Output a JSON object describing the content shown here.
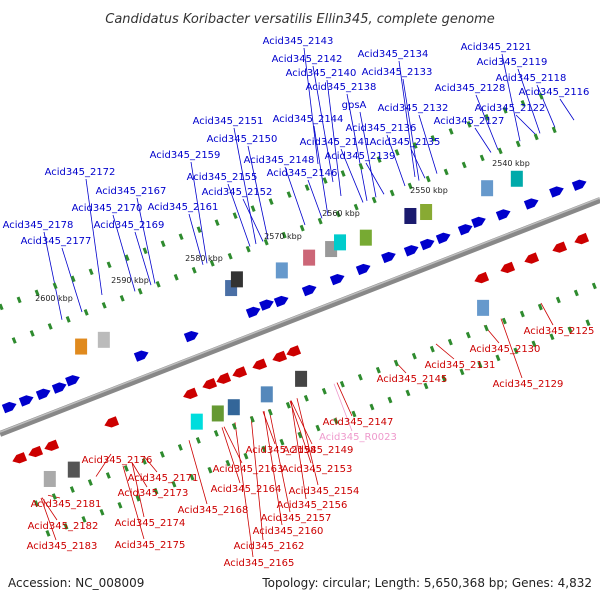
{
  "title": "Candidatus Koribacter versatilis Ellin345, complete genome",
  "footer": {
    "accession": "Accession: NC_008009",
    "summary": "Topology: circular; Length: 5,650,368 bp; Genes: 4,832"
  },
  "colors": {
    "top_strand": "#0000cc",
    "bottom_strand": "#cc0000",
    "rna": "#ee99cc",
    "backbone": "#888888"
  },
  "ticks": [
    "2540 kbp",
    "2550 kbp",
    "2560 kbp",
    "2570 kbp",
    "2580 kbp",
    "2590 kbp",
    "2600 kbp"
  ],
  "top_labels": [
    "Acid345_2143",
    "Acid345_2134",
    "Acid345_2121",
    "Acid345_2142",
    "Acid345_2119",
    "Acid345_2140",
    "Acid345_2133",
    "Acid345_2118",
    "Acid345_2138",
    "Acid345_2128",
    "Acid345_2116",
    "gpsA",
    "Acid345_2132",
    "Acid345_2122",
    "Acid345_2151",
    "Acid345_2144",
    "Acid345_2127",
    "Acid345_2136",
    "Acid345_2150",
    "Acid345_2141",
    "Acid345_2135",
    "Acid345_2159",
    "Acid345_2139",
    "Acid345_2148",
    "Acid345_2155",
    "Acid345_2146",
    "Acid345_2172",
    "Acid345_2167",
    "Acid345_2152",
    "Acid345_2170",
    "Acid345_2161",
    "Acid345_2169",
    "Acid345_2178",
    "Acid345_2177"
  ],
  "bottom_labels": [
    "Acid345_2125",
    "Acid345_2130",
    "Acid345_2131",
    "Acid345_2129",
    "Acid345_2145",
    "Acid345_2147",
    "Acid345_R0023",
    "Acid345_2149",
    "Acid345_2158",
    "Acid345_2176",
    "Acid345_2163",
    "Acid345_2153",
    "Acid345_2171",
    "Acid345_2173",
    "Acid345_2164",
    "Acid345_2154",
    "Acid345_2181",
    "Acid345_2156",
    "Acid345_2168",
    "Acid345_2157",
    "Acid345_2174",
    "Acid345_2182",
    "Acid345_2160",
    "Acid345_2175",
    "Acid345_2162",
    "Acid345_2183",
    "Acid345_2165"
  ]
}
